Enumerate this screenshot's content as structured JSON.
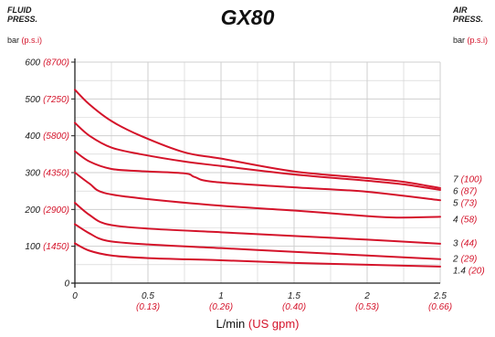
{
  "header": {
    "title": "GX80",
    "left_label": [
      "FLUID",
      "PRESS."
    ],
    "right_label": [
      "AIR",
      "PRESS."
    ],
    "left_unit": "bar",
    "left_unit_alt": "(p.s.i)",
    "right_unit": "bar",
    "right_unit_alt": "(p.s.i)"
  },
  "chart_data": {
    "type": "line",
    "title": "GX80",
    "xlabel": "L/min",
    "xlabel_alt": "(US gpm)",
    "ylabel": "bar (p.s.i)",
    "xlim": [
      0,
      2.5
    ],
    "ylim": [
      0,
      600
    ],
    "grid": true,
    "colors": {
      "line": "#d4132a",
      "grid": "#cfcfcf",
      "axis": "#222222",
      "alt_text": "#d4132a"
    },
    "x_ticks": [
      {
        "value": 0,
        "label": "0",
        "alt": ""
      },
      {
        "value": 0.5,
        "label": "0.5",
        "alt": "(0.13)"
      },
      {
        "value": 1,
        "label": "1",
        "alt": "(0.26)"
      },
      {
        "value": 1.5,
        "label": "1.5",
        "alt": "(0.40)"
      },
      {
        "value": 2,
        "label": "2",
        "alt": "(0.53)"
      },
      {
        "value": 2.5,
        "label": "2.5",
        "alt": "(0.66)"
      }
    ],
    "y_ticks": [
      {
        "value": 0,
        "label": "0",
        "alt": ""
      },
      {
        "value": 100,
        "label": "100",
        "alt": "(1450)"
      },
      {
        "value": 200,
        "label": "200",
        "alt": "(2900)"
      },
      {
        "value": 300,
        "label": "300",
        "alt": "(4350)"
      },
      {
        "value": 400,
        "label": "400",
        "alt": "(5800)"
      },
      {
        "value": 500,
        "label": "500",
        "alt": "(7250)"
      },
      {
        "value": 600,
        "label": "600",
        "alt": "(8700)"
      }
    ],
    "series": [
      {
        "name": "7",
        "alt": "(100)",
        "x": [
          0,
          0.1,
          0.25,
          0.45,
          0.75,
          1.0,
          1.5,
          2.0,
          2.25,
          2.5
        ],
        "y": [
          525,
          485,
          440,
          400,
          355,
          338,
          303,
          285,
          275,
          258
        ]
      },
      {
        "name": "6",
        "alt": "(87)",
        "x": [
          0,
          0.1,
          0.25,
          0.45,
          0.75,
          1.0,
          1.5,
          2.0,
          2.25,
          2.5
        ],
        "y": [
          435,
          400,
          368,
          350,
          330,
          318,
          295,
          278,
          268,
          253
        ]
      },
      {
        "name": "5",
        "alt": "(73)",
        "x": [
          0,
          0.1,
          0.25,
          0.45,
          0.75,
          0.82,
          0.95,
          1.5,
          2.0,
          2.5
        ],
        "y": [
          358,
          330,
          310,
          304,
          298,
          288,
          275,
          260,
          248,
          225
        ]
      },
      {
        "name": "4",
        "alt": "(58)",
        "x": [
          0,
          0.1,
          0.2,
          0.5,
          1.0,
          1.5,
          2.0,
          2.2,
          2.5
        ],
        "y": [
          300,
          270,
          245,
          228,
          210,
          197,
          182,
          178,
          180
        ]
      },
      {
        "name": "3",
        "alt": "(44)",
        "x": [
          0,
          0.1,
          0.22,
          0.5,
          1.0,
          1.5,
          2.0,
          2.5
        ],
        "y": [
          218,
          185,
          160,
          148,
          138,
          128,
          118,
          107
        ]
      },
      {
        "name": "2",
        "alt": "(29)",
        "x": [
          0,
          0.1,
          0.22,
          0.5,
          1.0,
          1.5,
          2.0,
          2.5
        ],
        "y": [
          160,
          135,
          115,
          105,
          95,
          85,
          75,
          65
        ]
      },
      {
        "name": "1.4",
        "alt": "(20)",
        "x": [
          0,
          0.1,
          0.25,
          0.5,
          1.0,
          1.5,
          2.0,
          2.5
        ],
        "y": [
          108,
          88,
          75,
          68,
          62,
          55,
          50,
          45
        ]
      }
    ]
  }
}
